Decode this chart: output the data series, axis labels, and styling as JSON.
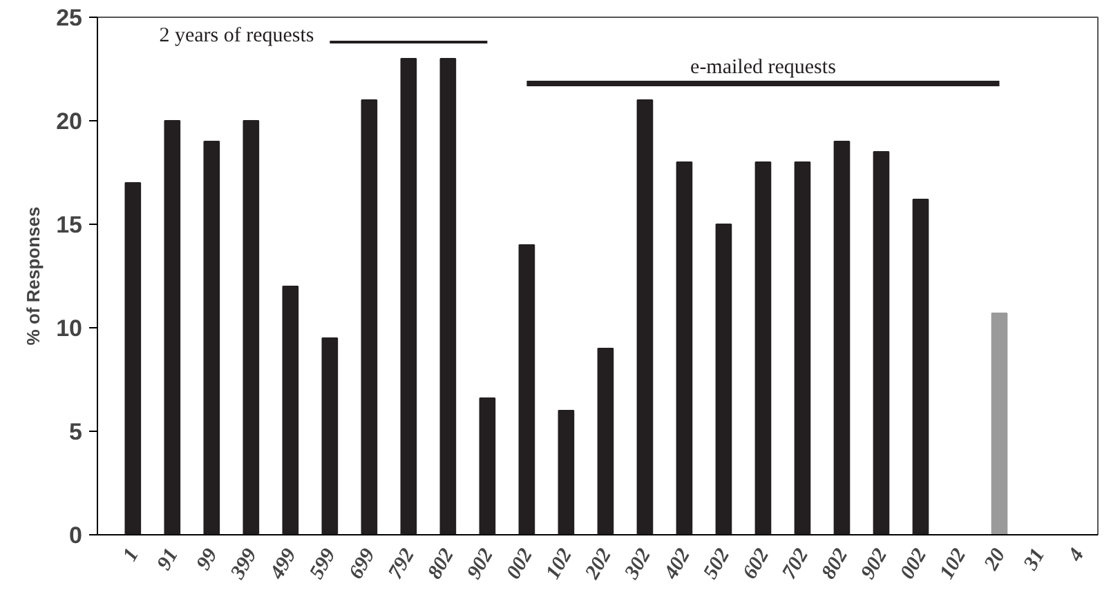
{
  "chart_data": {
    "type": "bar",
    "ylabel": "% of Responses",
    "categories": [
      "1",
      "91",
      "99",
      "399",
      "499",
      "599",
      "699",
      "792",
      "802",
      "902",
      "002",
      "102",
      "202",
      "302",
      "402",
      "502",
      "602",
      "702",
      "802",
      "902",
      "002",
      "102",
      "20",
      "31",
      "4"
    ],
    "series": [
      {
        "values": [
          17,
          20,
          19,
          20,
          12,
          9.5,
          21,
          23,
          23,
          6.6,
          14,
          6,
          9,
          21,
          18,
          15,
          18,
          18,
          19,
          18.5,
          16.2,
          null,
          10.7,
          null,
          null
        ],
        "colors": [
          "#231f20",
          "#231f20",
          "#231f20",
          "#231f20",
          "#231f20",
          "#231f20",
          "#231f20",
          "#231f20",
          "#231f20",
          "#231f20",
          "#231f20",
          "#231f20",
          "#231f20",
          "#231f20",
          "#231f20",
          "#231f20",
          "#231f20",
          "#231f20",
          "#231f20",
          "#231f20",
          "#231f20",
          "#231f20",
          "#9a9a9a",
          "#231f20",
          "#231f20"
        ]
      },
      {
        "type": "line",
        "name": "2 years of requests",
        "x": [
          "599",
          "902"
        ],
        "values": [
          23.8,
          23.8
        ],
        "color": "#231f20"
      },
      {
        "type": "line",
        "name": "e-mailed requests",
        "x": [
          "002",
          "20"
        ],
        "values": [
          21.8,
          21.8
        ],
        "color": "#231f20"
      }
    ],
    "ylim": [
      0,
      25
    ],
    "yticks": [
      0,
      5,
      10,
      15,
      20,
      25
    ],
    "grid": false
  }
}
